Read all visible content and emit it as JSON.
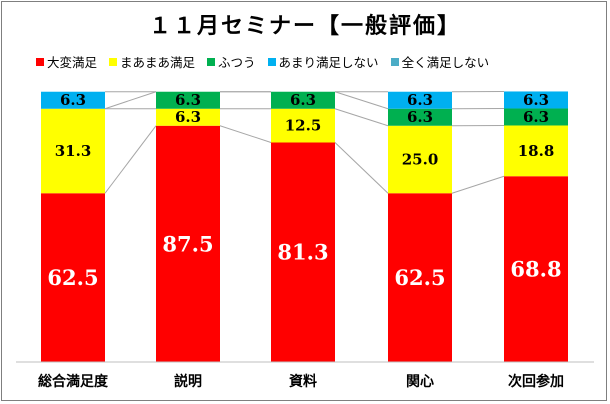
{
  "chart_data": {
    "type": "stacked-bar-100",
    "title": "１１月セミナー【一般評価】",
    "categories": [
      "総合満足度",
      "説明",
      "資料",
      "関心",
      "次回参加"
    ],
    "series": [
      {
        "name": "大変満足",
        "color": "#ff0000",
        "values": [
          62.5,
          87.5,
          81.3,
          62.5,
          68.8
        ]
      },
      {
        "name": "まあまあ満足",
        "color": "#ffff00",
        "values": [
          31.3,
          6.3,
          12.5,
          25.0,
          18.8
        ]
      },
      {
        "name": "ふつう",
        "color": "#00b050",
        "values": [
          0,
          6.3,
          6.3,
          6.3,
          6.3
        ]
      },
      {
        "name": "あまり満足しない",
        "color": "#00b0f0",
        "values": [
          6.3,
          0,
          0,
          6.3,
          6.3
        ]
      },
      {
        "name": "全く満足しない",
        "color": "#4bacc6",
        "values": [
          0,
          0,
          0,
          0,
          0
        ]
      }
    ],
    "ylim": [
      0,
      100
    ],
    "series_lines": true,
    "legend_position": "top"
  }
}
